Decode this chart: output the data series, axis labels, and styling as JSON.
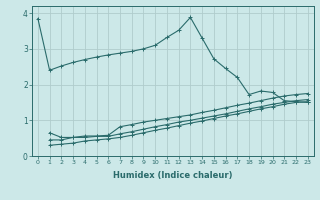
{
  "xlabel": "Humidex (Indice chaleur)",
  "ylabel": "",
  "xlim": [
    -0.5,
    23.5
  ],
  "ylim": [
    0,
    4.2
  ],
  "yticks": [
    0,
    1,
    2,
    3,
    4
  ],
  "xticks": [
    0,
    1,
    2,
    3,
    4,
    5,
    6,
    7,
    8,
    9,
    10,
    11,
    12,
    13,
    14,
    15,
    16,
    17,
    18,
    19,
    20,
    21,
    22,
    23
  ],
  "background_color": "#cce8e8",
  "line_color": "#2a6b6b",
  "grid_color": "#b0cccc",
  "lines": [
    {
      "x": [
        0,
        1,
        2,
        3,
        4,
        5,
        6,
        7,
        8,
        9,
        10,
        11,
        12,
        13,
        14,
        15,
        16,
        17,
        18,
        19,
        20,
        21,
        22,
        23
      ],
      "y": [
        3.85,
        2.4,
        2.52,
        2.62,
        2.7,
        2.77,
        2.83,
        2.88,
        2.93,
        3.0,
        3.1,
        3.32,
        3.52,
        3.88,
        3.3,
        2.72,
        2.45,
        2.2,
        1.72,
        1.82,
        1.78,
        1.55,
        1.52,
        1.5
      ]
    },
    {
      "x": [
        1,
        2,
        3,
        4,
        5,
        6,
        7,
        8,
        9,
        10,
        11,
        12,
        13,
        14,
        15,
        16,
        17,
        18,
        19,
        20,
        21,
        22,
        23
      ],
      "y": [
        0.65,
        0.52,
        0.52,
        0.56,
        0.56,
        0.58,
        0.82,
        0.88,
        0.95,
        1.0,
        1.05,
        1.1,
        1.15,
        1.22,
        1.28,
        1.35,
        1.42,
        1.48,
        1.55,
        1.62,
        1.68,
        1.72,
        1.75
      ]
    },
    {
      "x": [
        1,
        2,
        3,
        4,
        5,
        6,
        7,
        8,
        9,
        10,
        11,
        12,
        13,
        14,
        15,
        16,
        17,
        18,
        19,
        20,
        21,
        22,
        23
      ],
      "y": [
        0.45,
        0.45,
        0.52,
        0.52,
        0.55,
        0.55,
        0.62,
        0.68,
        0.75,
        0.82,
        0.88,
        0.95,
        1.0,
        1.06,
        1.12,
        1.18,
        1.25,
        1.32,
        1.38,
        1.45,
        1.5,
        1.55,
        1.58
      ]
    },
    {
      "x": [
        1,
        2,
        3,
        4,
        5,
        6,
        7,
        8,
        9,
        10,
        11,
        12,
        13,
        14,
        15,
        16,
        17,
        18,
        19,
        20,
        21,
        22,
        23
      ],
      "y": [
        0.3,
        0.33,
        0.36,
        0.42,
        0.45,
        0.48,
        0.52,
        0.58,
        0.65,
        0.72,
        0.78,
        0.85,
        0.92,
        0.98,
        1.05,
        1.12,
        1.18,
        1.25,
        1.32,
        1.38,
        1.45,
        1.5,
        1.52
      ]
    }
  ],
  "figsize": [
    3.2,
    2.0
  ],
  "dpi": 100
}
